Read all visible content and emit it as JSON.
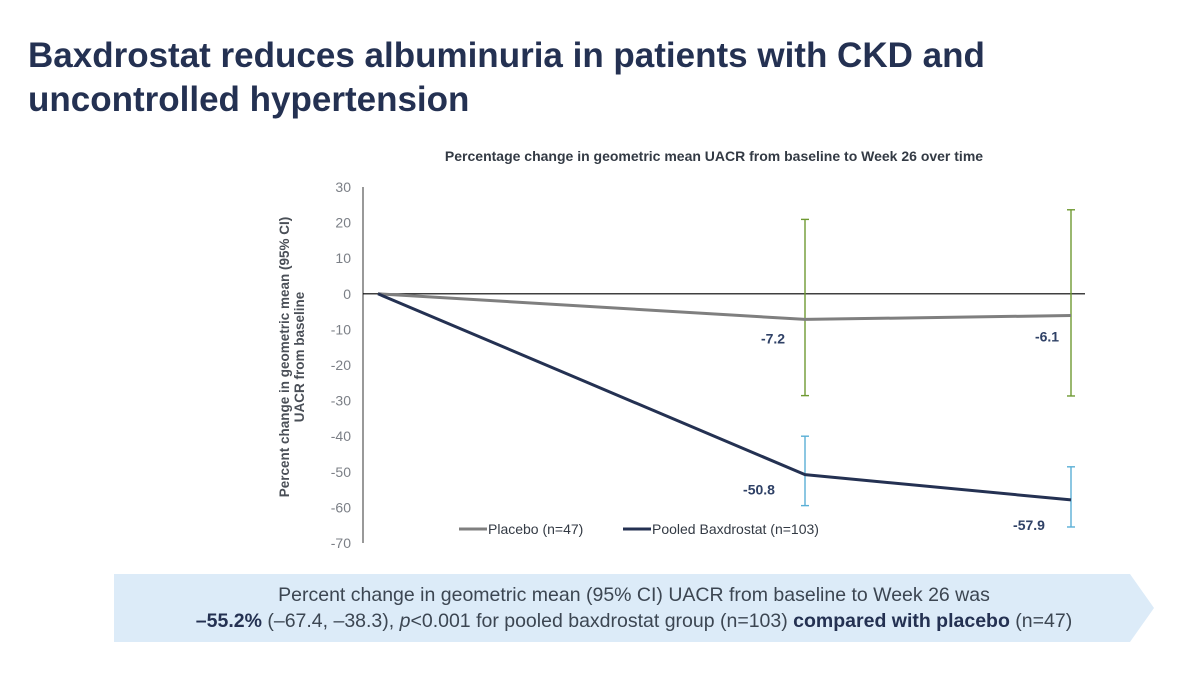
{
  "slide": {
    "title": "Baxdrostat reduces albuminuria in patients with CKD and uncontrolled hypertension"
  },
  "chart_data": {
    "type": "line",
    "title": "Percentage change in geometric mean UACR from baseline to Week 26 over time",
    "ylabel": "Percent change in geometric mean (95% CI) UACR from baseline",
    "xlabel": "",
    "ylim": [
      -70,
      30
    ],
    "yticks": [
      30,
      20,
      10,
      0,
      -10,
      -20,
      -30,
      -40,
      -50,
      -60,
      -70
    ],
    "x": [
      0,
      1,
      2
    ],
    "series": [
      {
        "name": "Placebo (n=47)",
        "color": "#7f7f7f",
        "values": [
          0,
          -7.2,
          -6.1
        ],
        "ci": [
          null,
          [
            -28.6,
            20.9
          ],
          [
            -28.7,
            23.6
          ]
        ],
        "ci_color": "#6f9a32",
        "labels": [
          "",
          "-7.2",
          "-6.1"
        ]
      },
      {
        "name": "Pooled Baxdrostat (n=103)",
        "color": "#243152",
        "values": [
          0,
          -50.8,
          -57.9
        ],
        "ci": [
          null,
          [
            -59.5,
            -40.0
          ],
          [
            -65.5,
            -48.6
          ]
        ],
        "ci_color": "#5aafd6",
        "labels": [
          "",
          "-50.8",
          "-57.9"
        ]
      }
    ],
    "legend_position": "bottom-left",
    "grid": false
  },
  "summary": {
    "line1": "Percent change in geometric mean (95% CI) UACR from baseline to Week 26 was",
    "value": "–55.2%",
    "ci_text": " (–67.4, –38.3), ",
    "p_letter": "p",
    "p_rest": "<0.001 for pooled baxdrostat group (n=103) ",
    "comparison": "compared with placebo",
    "n_placebo": " (n=47)"
  },
  "colors": {
    "title": "#243152",
    "banner": "#dcebf8",
    "axis": "#000000"
  }
}
